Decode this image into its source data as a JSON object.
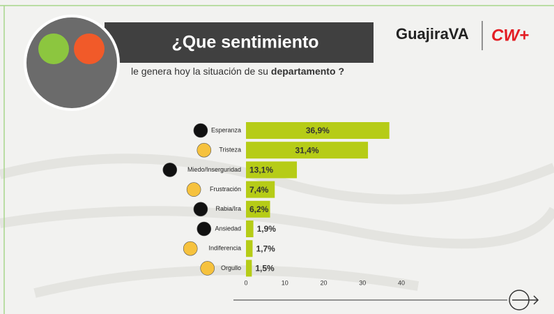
{
  "header": {
    "title": "¿Que sentimiento",
    "subtitle_parts": [
      "le genera hoy la situación de su",
      "departamento",
      "?"
    ],
    "logos": [
      "GuajiraVA",
      "CW+"
    ]
  },
  "chart_data": {
    "type": "bar",
    "orientation": "horizontal",
    "color": "#b6cc17",
    "categories": [
      "Esperanza",
      "Tristeza",
      "Miedo/Inserguridad",
      "Frustración",
      "Rabia/Ira",
      "Ansiedad",
      "Indiferencia",
      "Orgullo"
    ],
    "values": [
      36.9,
      31.4,
      13.1,
      7.4,
      6.2,
      1.9,
      1.7,
      1.5
    ],
    "value_labels": [
      "36,9%",
      "31,4%",
      "13,1%",
      "7,4%",
      "6,2%",
      "1,9%",
      "1,7%",
      "1,5%"
    ],
    "xlim": [
      0,
      40
    ],
    "xticks": [
      0,
      10,
      20,
      30,
      40
    ]
  }
}
